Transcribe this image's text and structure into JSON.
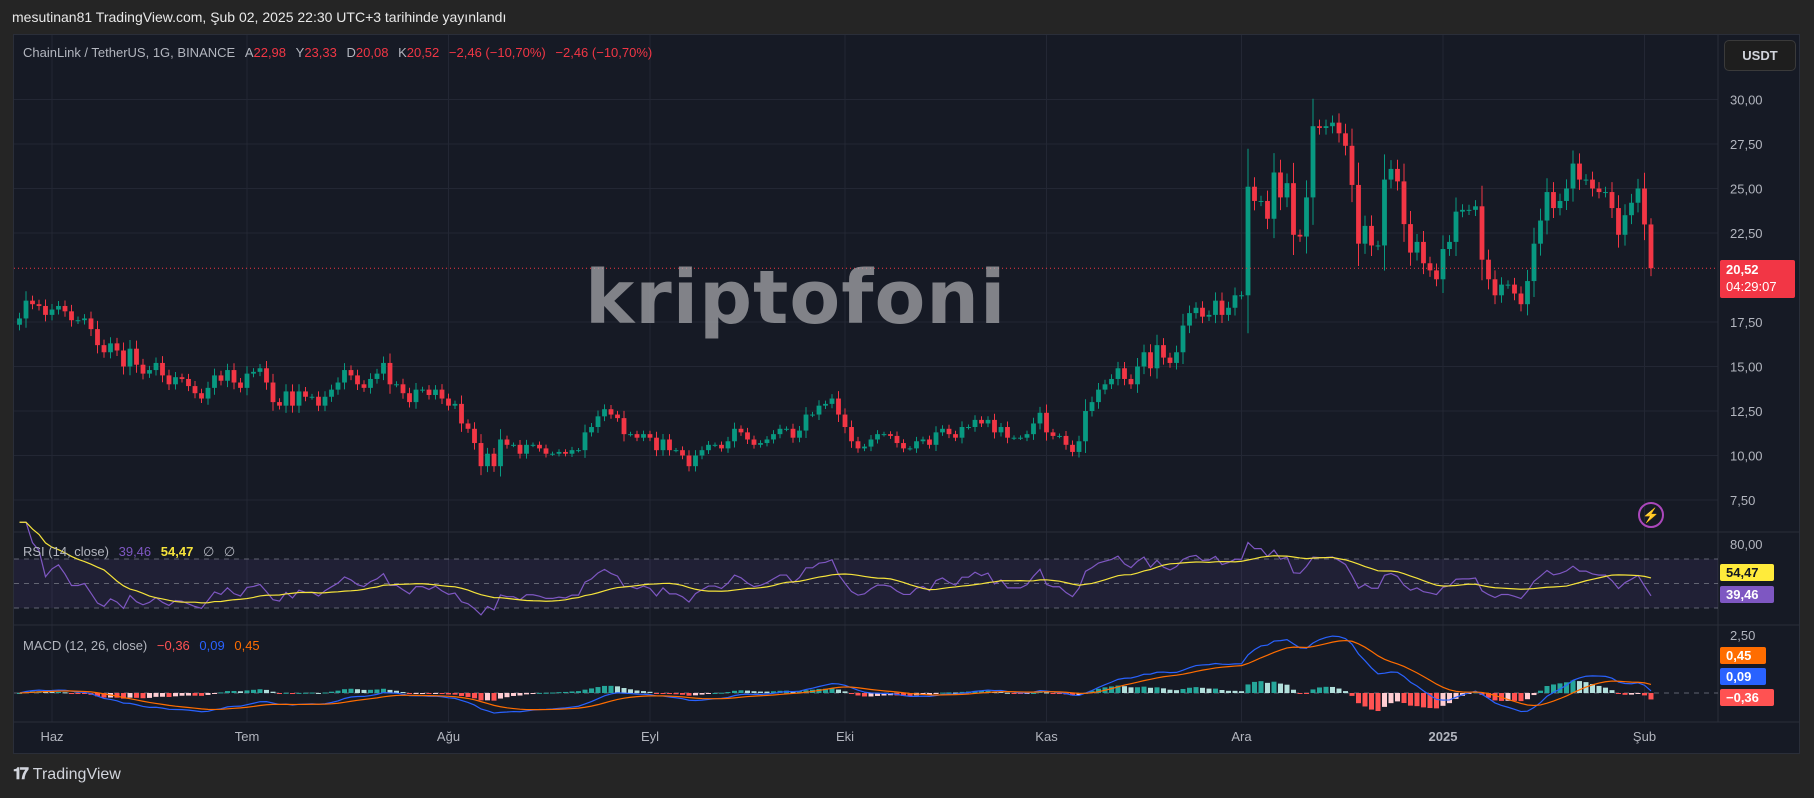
{
  "header": {
    "published": "mesutinan81 TradingView.com, Şub 02, 2025 22:30 UTC+3 tarihinde yayınlandı"
  },
  "legend": {
    "symbol": "ChainLink / TetherUS, 1G, BINANCE",
    "open_label": "A",
    "open": "22,98",
    "high_label": "Y",
    "high": "23,33",
    "low_label": "D",
    "low": "20,08",
    "close_label": "K",
    "close": "20,52",
    "change1": "−2,46 (−10,70%)",
    "change2": "−2,46 (−10,70%)"
  },
  "currency_button": "USDT",
  "current_price": {
    "value": "20,52",
    "countdown": "04:29:07"
  },
  "watermark": "kriptofoni",
  "rsi": {
    "title": "RSI (14, close)",
    "rsi_value": "39,46",
    "ma_value": "54,47",
    "extra1": "∅",
    "extra2": "∅",
    "axis_label": "80,00",
    "tag_ma": "54,47",
    "tag_rsi": "39,46"
  },
  "macd": {
    "title": "MACD (12, 26, close)",
    "hist": "−0,36",
    "macd": "0,09",
    "signal": "0,45",
    "axis_label": "2,50",
    "tag_signal": "0,45",
    "tag_macd": "0,09",
    "tag_hist": "−0,36"
  },
  "branding": "TradingView",
  "icons": {
    "alert": "lightning-icon",
    "logo": "tradingview-logo"
  },
  "colors": {
    "up": "#089981",
    "down": "#f23645",
    "rsi": "#7e57c2",
    "rsi_ma": "#f5e33b",
    "macd": "#2962ff",
    "signal": "#ff6d00",
    "hist_up": "#26a69a",
    "hist_up_light": "#b2dfdb",
    "hist_down": "#ff5252",
    "hist_down_light": "#ffcdd2"
  },
  "chart_data": {
    "type": "candlestick",
    "last_date": "2025-02-02",
    "price_ticks": [
      {
        "v": 30,
        "label": "30,00"
      },
      {
        "v": 27.5,
        "label": "27,50"
      },
      {
        "v": 25,
        "label": "25,00"
      },
      {
        "v": 22.5,
        "label": "22,50"
      },
      {
        "v": 17.5,
        "label": "17,50"
      },
      {
        "v": 15,
        "label": "15,00"
      },
      {
        "v": 12.5,
        "label": "12,50"
      },
      {
        "v": 10,
        "label": "10,00"
      },
      {
        "v": 7.5,
        "label": "7,50"
      }
    ],
    "time_ticks": [
      {
        "date": "2024-06-01",
        "label": "Haz"
      },
      {
        "date": "2024-07-01",
        "label": "Tem"
      },
      {
        "date": "2024-08-01",
        "label": "Ağu"
      },
      {
        "date": "2024-09-01",
        "label": "Eyl"
      },
      {
        "date": "2024-10-01",
        "label": "Eki"
      },
      {
        "date": "2024-11-01",
        "label": "Kas"
      },
      {
        "date": "2024-12-01",
        "label": "Ara"
      },
      {
        "date": "2025-01-01",
        "label": "2025"
      },
      {
        "date": "2025-02-01",
        "label": "Şub"
      }
    ],
    "closes": [
      17.7,
      18.7,
      18.5,
      18.4,
      17.9,
      18.2,
      18.4,
      18.1,
      17.6,
      17.6,
      17.7,
      17.1,
      16.2,
      15.8,
      16.3,
      15.9,
      15.0,
      16.0,
      15.1,
      14.6,
      14.8,
      15.2,
      14.5,
      14.0,
      14.4,
      14.3,
      13.9,
      13.5,
      13.2,
      13.8,
      14.5,
      14.2,
      14.8,
      14.1,
      13.8,
      14.6,
      14.7,
      14.9,
      14.1,
      13.0,
      12.8,
      13.6,
      12.8,
      13.6,
      13.3,
      13.3,
      12.8,
      13.3,
      13.7,
      14.1,
      14.8,
      14.5,
      14.0,
      13.8,
      14.3,
      14.6,
      15.2,
      14.0,
      14.0,
      13.5,
      13.0,
      13.7,
      13.7,
      13.4,
      13.7,
      13.2,
      12.8,
      12.9,
      11.8,
      11.5,
      10.7,
      9.4,
      10.1,
      9.4,
      10.9,
      10.6,
      10.6,
      10.1,
      10.6,
      10.6,
      10.4,
      10.1,
      10.1,
      10.2,
      10.1,
      10.3,
      10.3,
      11.3,
      11.6,
      12.2,
      12.6,
      12.3,
      12.1,
      11.2,
      11.2,
      11.0,
      11.2,
      11.0,
      10.3,
      10.9,
      10.3,
      10.3,
      10.0,
      9.4,
      10.0,
      10.3,
      10.6,
      10.6,
      10.4,
      10.8,
      11.5,
      11.3,
      10.9,
      10.6,
      10.7,
      10.9,
      11.2,
      11.5,
      11.5,
      11.0,
      11.4,
      12.3,
      12.3,
      12.8,
      12.9,
      13.2,
      12.3,
      11.6,
      10.8,
      10.4,
      10.5,
      10.9,
      11.2,
      11.2,
      11.1,
      10.7,
      10.4,
      10.4,
      10.8,
      10.9,
      10.6,
      11.3,
      11.5,
      11.2,
      11.0,
      11.6,
      11.6,
      12.0,
      11.8,
      12.0,
      11.3,
      11.6,
      11.0,
      11.0,
      11.0,
      11.2,
      11.8,
      12.4,
      11.3,
      11.1,
      11.1,
      10.6,
      10.2,
      10.8,
      12.5,
      13.0,
      13.7,
      14.0,
      14.3,
      14.9,
      14.3,
      14.0,
      15.0,
      15.8,
      14.9,
      16.2,
      15.5,
      15.2,
      15.8,
      17.3,
      18.0,
      18.3,
      17.8,
      17.9,
      18.7,
      17.9,
      18.3,
      19.0,
      19.0,
      25.1,
      24.3,
      24.3,
      23.3,
      25.9,
      24.5,
      25.3,
      22.4,
      22.3,
      24.5,
      28.5,
      28.4,
      28.5,
      28.7,
      28.1,
      27.4,
      25.2,
      21.9,
      22.9,
      21.8,
      21.8,
      25.5,
      26.1,
      25.4,
      23.0,
      21.4,
      22.0,
      20.8,
      20.4,
      19.9,
      21.6,
      22.0,
      23.7,
      23.8,
      23.8,
      24.0,
      21.0,
      19.9,
      19.0,
      19.6,
      19.6,
      19.1,
      18.5,
      19.8,
      21.9,
      23.2,
      24.8,
      23.9,
      24.3,
      25.0,
      26.4,
      25.5,
      25.5,
      25.0,
      24.8,
      24.8,
      23.9,
      22.4,
      23.5,
      24.2,
      25.0,
      22.98,
      20.52
    ],
    "last_candle": {
      "open": 22.98,
      "high": 23.33,
      "low": 20.08,
      "close": 20.52
    },
    "rsi_levels": [
      70,
      50,
      30
    ],
    "rsi_scale_label": 80,
    "macd_scale_label": 2.5
  }
}
